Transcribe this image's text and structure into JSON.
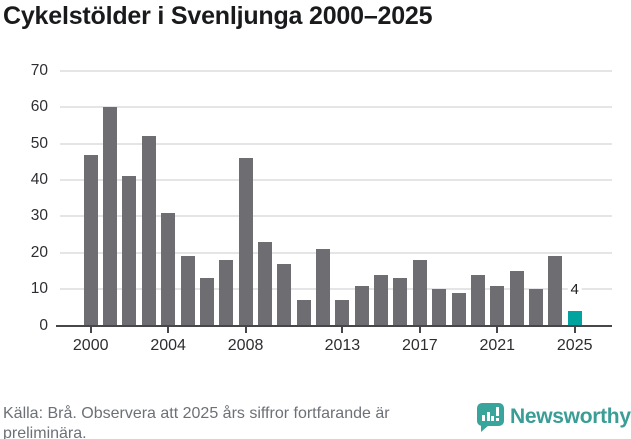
{
  "title": "Cykelstölder i Svenljunga 2000–2025",
  "chart_data": {
    "type": "bar",
    "title": "Cykelstölder i Svenljunga 2000–2025",
    "x": [
      2000,
      2001,
      2002,
      2003,
      2004,
      2005,
      2006,
      2007,
      2008,
      2009,
      2010,
      2011,
      2012,
      2013,
      2014,
      2015,
      2016,
      2017,
      2018,
      2019,
      2020,
      2021,
      2022,
      2023,
      2024,
      2025
    ],
    "values": [
      47,
      60,
      41,
      52,
      31,
      19,
      13,
      18,
      46,
      23,
      17,
      7,
      21,
      7,
      11,
      14,
      13,
      18,
      10,
      9,
      14,
      11,
      15,
      10,
      19,
      4
    ],
    "xlabel": "",
    "ylabel": "",
    "ylim": [
      0,
      70
    ],
    "yticks": [
      0,
      10,
      20,
      30,
      40,
      50,
      60,
      70
    ],
    "xticks": [
      2000,
      2004,
      2008,
      2013,
      2017,
      2021,
      2025
    ],
    "grid": "horizontal",
    "legend": "none",
    "bar_color": "#6d6d72",
    "highlight": {
      "year": 2025,
      "value": 4,
      "label": "4",
      "color": "#00a39e"
    }
  },
  "footer": {
    "lines": [
      "Källa: Brå. Observera att 2025 års siffror fortfarande är",
      "preliminära."
    ]
  },
  "branding": {
    "logo_text": "Newsworthy",
    "logo_color": "#3a9d96",
    "icon": "bar-chart-speech-bubble-icon"
  }
}
